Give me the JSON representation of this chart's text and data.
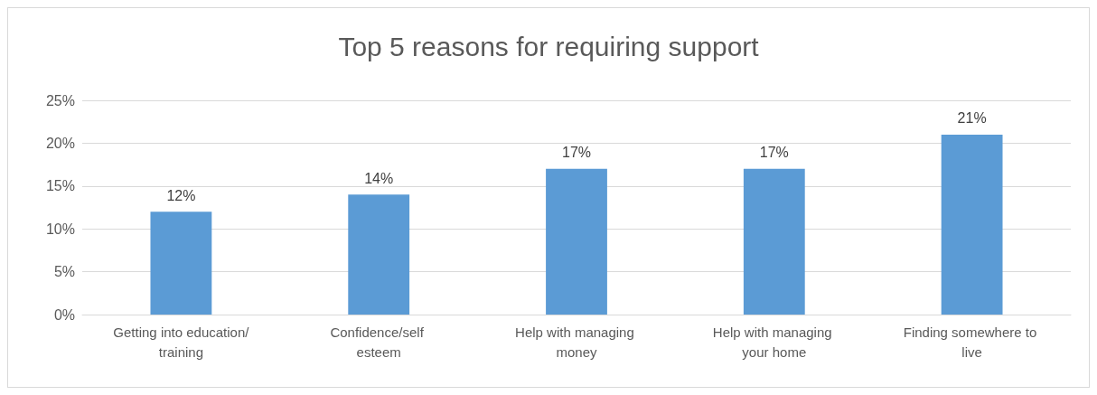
{
  "chart_data": {
    "type": "bar",
    "title": "Top 5 reasons for requiring support",
    "categories": [
      "Getting into education/training",
      "Confidence/self esteem",
      "Help with managing money",
      "Help with managing your home",
      "Finding somewhere to live"
    ],
    "values": [
      12,
      14,
      17,
      17,
      21
    ],
    "value_labels": [
      "12%",
      "14%",
      "17%",
      "17%",
      "21%"
    ],
    "color": "#5b9bd5",
    "ylim": [
      0,
      25
    ],
    "yticks": [
      {
        "value": 0,
        "label": "0%"
      },
      {
        "value": 5,
        "label": "5%"
      },
      {
        "value": 10,
        "label": "10%"
      },
      {
        "value": 15,
        "label": "15%"
      },
      {
        "value": 20,
        "label": "20%"
      },
      {
        "value": 25,
        "label": "25%"
      }
    ],
    "grid": "y"
  }
}
